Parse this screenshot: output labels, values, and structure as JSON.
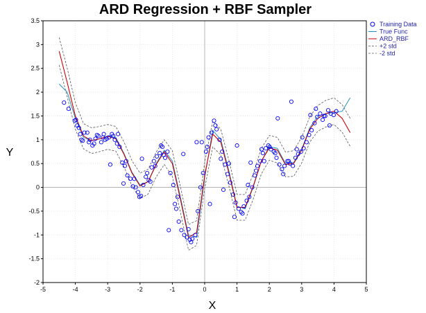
{
  "chart_data": {
    "type": "scatter",
    "title": "ARD Regression + RBF Sampler",
    "xlabel": "X",
    "ylabel": "Y",
    "xlim": [
      -5,
      5
    ],
    "ylim": [
      -2,
      3.5
    ],
    "xticks": [
      -5,
      -4,
      -3,
      -2,
      -1,
      0,
      1,
      2,
      3,
      4,
      5
    ],
    "yticks": [
      -2,
      -1.5,
      -1,
      -0.5,
      0,
      0.5,
      1,
      1.5,
      2,
      2.5,
      3,
      3.5
    ],
    "grid": true,
    "legend_position": "right-top",
    "colors": {
      "training": "#0000ff",
      "true_func": "#1f8fbf",
      "ard": "#cc0000",
      "std": "#555555"
    },
    "series": [
      {
        "name": "Training Data",
        "kind": "scatter"
      },
      {
        "name": "True Func",
        "kind": "line"
      },
      {
        "name": "ARD_RBF",
        "kind": "line"
      },
      {
        "name": "+2 std",
        "kind": "dashed"
      },
      {
        "name": "-2 std",
        "kind": "dashed"
      }
    ],
    "curve_x": [
      -4.5,
      -4.25,
      -4.0,
      -3.75,
      -3.5,
      -3.25,
      -3.0,
      -2.75,
      -2.5,
      -2.25,
      -2.0,
      -1.75,
      -1.5,
      -1.25,
      -1.0,
      -0.75,
      -0.5,
      -0.25,
      0.0,
      0.25,
      0.5,
      0.75,
      1.0,
      1.25,
      1.5,
      1.75,
      2.0,
      2.25,
      2.5,
      2.75,
      3.0,
      3.25,
      3.5,
      3.75,
      4.0,
      4.25,
      4.5
    ],
    "true_func": [
      2.17,
      2.0,
      1.45,
      1.05,
      0.98,
      1.02,
      1.08,
      1.05,
      0.72,
      0.32,
      0.05,
      0.12,
      0.5,
      0.78,
      0.55,
      -0.2,
      -1.0,
      -1.05,
      0.2,
      1.2,
      1.0,
      0.35,
      -0.4,
      -0.45,
      0.0,
      0.55,
      0.85,
      0.82,
      0.5,
      0.52,
      0.8,
      1.25,
      1.5,
      1.55,
      1.57,
      1.6,
      1.88
    ],
    "ard_rbf": [
      2.86,
      2.2,
      1.5,
      1.08,
      0.98,
      1.02,
      1.07,
      1.02,
      0.7,
      0.3,
      0.03,
      0.12,
      0.48,
      0.75,
      0.5,
      -0.25,
      -1.05,
      -0.95,
      0.25,
      1.12,
      0.95,
      0.3,
      -0.42,
      -0.42,
      0.02,
      0.55,
      0.83,
      0.78,
      0.48,
      0.5,
      0.78,
      1.22,
      1.45,
      1.55,
      1.6,
      1.45,
      1.15
    ],
    "plus_2std": [
      3.15,
      2.5,
      1.78,
      1.34,
      1.25,
      1.28,
      1.32,
      1.28,
      0.96,
      0.56,
      0.3,
      0.38,
      0.74,
      1.0,
      0.77,
      0.02,
      -0.78,
      -0.7,
      0.52,
      1.39,
      1.22,
      0.57,
      -0.15,
      -0.15,
      0.28,
      0.82,
      1.09,
      1.05,
      0.74,
      0.77,
      1.05,
      1.48,
      1.72,
      1.83,
      1.88,
      1.74,
      1.45
    ],
    "minus_2std": [
      2.57,
      1.9,
      1.22,
      0.81,
      0.71,
      0.75,
      0.8,
      0.76,
      0.44,
      0.03,
      -0.24,
      -0.14,
      0.22,
      0.48,
      0.23,
      -0.52,
      -1.32,
      -1.22,
      -0.02,
      0.85,
      0.68,
      0.03,
      -0.69,
      -0.69,
      -0.25,
      0.28,
      0.57,
      0.51,
      0.22,
      0.23,
      0.51,
      0.95,
      1.18,
      1.27,
      1.32,
      1.16,
      0.86
    ],
    "training_x": [
      -4.35,
      -4.21,
      -3.98,
      -3.89,
      -3.85,
      -3.77,
      -3.63,
      -3.58,
      -3.47,
      -3.38,
      -3.29,
      -3.2,
      -3.12,
      -3.03,
      -2.96,
      -2.87,
      -2.78,
      -2.71,
      -2.63,
      -2.55,
      -2.47,
      -2.39,
      -2.3,
      -2.22,
      -2.13,
      -2.06,
      -1.97,
      -1.9,
      -1.82,
      -1.73,
      -1.64,
      -1.57,
      -1.48,
      -1.39,
      -1.31,
      -1.22,
      -1.15,
      -1.06,
      -0.97,
      -0.88,
      -0.8,
      -0.72,
      -0.63,
      -0.55,
      -0.46,
      -0.38,
      -0.29,
      -0.21,
      -0.13,
      -0.05,
      0.04,
      0.12,
      0.21,
      0.29,
      0.37,
      0.46,
      0.54,
      0.63,
      0.71,
      0.79,
      0.88,
      0.96,
      1.05,
      1.13,
      1.21,
      1.3,
      1.38,
      1.47,
      1.55,
      1.63,
      1.72,
      1.8,
      1.89,
      1.97,
      2.05,
      2.14,
      2.22,
      2.31,
      2.39,
      2.47,
      2.56,
      2.64,
      2.73,
      2.81,
      2.89,
      2.98,
      3.06,
      3.15,
      3.23,
      3.31,
      3.4,
      3.48,
      3.57,
      3.65,
      3.73,
      3.82,
      3.9,
      3.99,
      4.07,
      -3.94,
      -3.55,
      -3.15,
      -2.68,
      -2.18,
      -1.78,
      -1.35,
      -0.92,
      -0.5,
      -0.09,
      0.33,
      0.75,
      1.17,
      1.59,
      2.01,
      2.43,
      2.85,
      3.27,
      3.69,
      -4.02,
      -3.72,
      -3.42,
      -3.08,
      -2.83,
      -2.43,
      -2.02,
      -1.68,
      -1.27,
      -0.84,
      -0.42,
      0.08,
      0.5,
      0.92,
      1.34,
      1.76,
      2.18,
      2.6,
      3.02,
      3.44,
      3.86,
      -3.81,
      -3.33,
      -2.92,
      -2.51,
      -1.94,
      -1.53,
      -1.11,
      -0.66,
      -0.25,
      0.16,
      0.58,
      1.0,
      1.42,
      1.84,
      2.26,
      2.68,
      3.1,
      3.52,
      3.94
    ],
    "training_y": [
      1.78,
      1.65,
      1.42,
      1.25,
      1.12,
      0.98,
      1.15,
      0.95,
      0.88,
      1.02,
      1.08,
      0.95,
      1.12,
      1.02,
      1.05,
      1.12,
      1.0,
      0.92,
      0.85,
      0.52,
      0.45,
      0.25,
      0.18,
      0.02,
      0.0,
      -0.1,
      -0.18,
      0.05,
      0.22,
      0.15,
      0.42,
      0.55,
      0.65,
      0.72,
      0.85,
      0.62,
      0.75,
      0.3,
      0.05,
      -0.45,
      -0.72,
      -0.9,
      -1.0,
      -1.05,
      -1.1,
      -1.08,
      -1.0,
      -0.5,
      0.0,
      0.3,
      0.75,
      1.05,
      1.15,
      1.4,
      1.22,
      1.0,
      0.75,
      0.48,
      0.28,
      0.1,
      -0.15,
      -0.32,
      -0.45,
      -0.52,
      -0.4,
      -0.28,
      -0.2,
      0.0,
      0.25,
      0.45,
      0.55,
      0.72,
      0.82,
      0.88,
      0.8,
      0.75,
      0.62,
      0.48,
      0.38,
      0.45,
      0.55,
      0.5,
      0.45,
      0.62,
      0.7,
      0.75,
      0.82,
      0.95,
      1.1,
      1.2,
      1.35,
      1.48,
      1.55,
      1.42,
      1.5,
      1.62,
      1.55,
      1.52,
      1.6,
      1.3,
      1.0,
      1.05,
      1.12,
      0.18,
      0.3,
      0.88,
      -0.35,
      -0.88,
      0.95,
      1.3,
      0.5,
      -0.55,
      0.35,
      0.85,
      0.28,
      0.8,
      1.52,
      1.5,
      1.4,
      1.15,
      0.92,
      1.0,
      1.08,
      0.55,
      -0.2,
      0.12,
      0.68,
      -0.2,
      -1.15,
      0.85,
      0.6,
      -0.62,
      0.05,
      0.8,
      0.72,
      0.55,
      1.05,
      1.65,
      1.3,
      1.0,
      1.1,
      0.48,
      0.08,
      0.6,
      0.45,
      -0.9,
      0.7,
      0.95,
      -0.35,
      -0.05,
      0.88,
      0.52,
      0.55,
      1.45,
      1.8
    ]
  }
}
